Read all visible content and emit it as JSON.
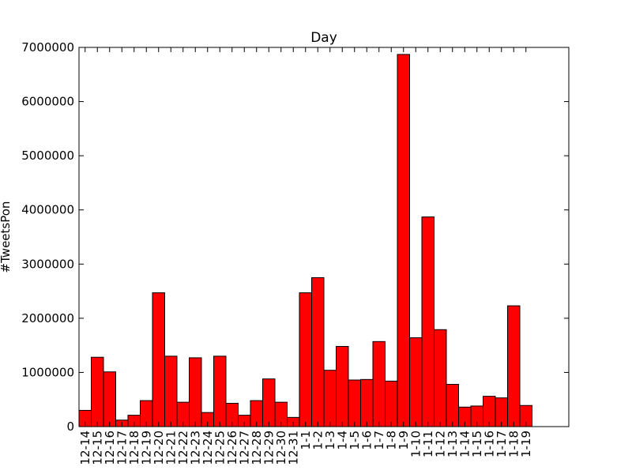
{
  "chart_data": {
    "type": "bar",
    "title": "Day",
    "xlabel": "",
    "ylabel": "#TweetsPon",
    "ylim": [
      0,
      7000000
    ],
    "yticks": [
      0,
      1000000,
      2000000,
      3000000,
      4000000,
      5000000,
      6000000,
      7000000
    ],
    "ytick_labels": [
      "0",
      "1000000",
      "2000000",
      "3000000",
      "4000000",
      "5000000",
      "6000000",
      "7000000"
    ],
    "grid": false,
    "bar_color": "#ff0000",
    "edge_color": "#000000",
    "categories": [
      "12-14",
      "12-15",
      "12-16",
      "12-17",
      "12-18",
      "12-19",
      "12-20",
      "12-21",
      "12-22",
      "12-23",
      "12-24",
      "12-25",
      "12-26",
      "12-27",
      "12-28",
      "12-29",
      "12-30",
      "12-31",
      "1-1",
      "1-2",
      "1-3",
      "1-4",
      "1-5",
      "1-6",
      "1-7",
      "1-8",
      "1-9",
      "1-10",
      "1-11",
      "1-12",
      "1-13",
      "1-14",
      "1-15",
      "1-16",
      "1-17",
      "1-18",
      "1-19"
    ],
    "values": [
      300000,
      1280000,
      1010000,
      120000,
      210000,
      480000,
      2470000,
      1300000,
      450000,
      1270000,
      260000,
      1300000,
      430000,
      210000,
      480000,
      880000,
      450000,
      170000,
      2470000,
      2750000,
      1040000,
      1480000,
      860000,
      870000,
      1570000,
      840000,
      6870000,
      1640000,
      3870000,
      1790000,
      780000,
      360000,
      380000,
      560000,
      530000,
      2230000,
      390000
    ]
  }
}
